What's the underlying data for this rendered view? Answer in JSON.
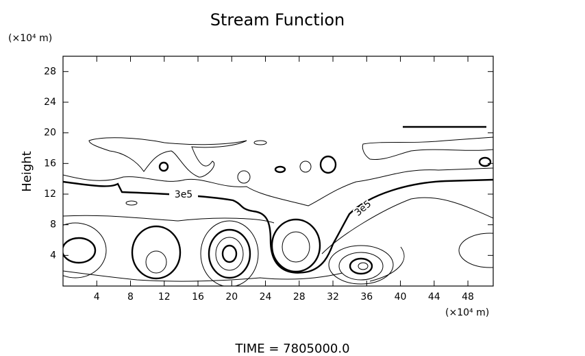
{
  "chart_data": {
    "type": "contour",
    "title": "Stream Function",
    "ylabel": "Height",
    "x_unit": "(×10⁴ m)",
    "y_unit": "(×10⁴ m)",
    "xlim": [
      0,
      51
    ],
    "ylim": [
      0,
      30
    ],
    "xticks": [
      4,
      8,
      12,
      16,
      20,
      24,
      28,
      32,
      36,
      40,
      44,
      48
    ],
    "yticks": [
      4,
      8,
      12,
      16,
      20,
      24,
      28
    ],
    "annotations": [
      "3e5",
      "3e5"
    ],
    "footer": "TIME  =  7805000.0",
    "color": "#000000"
  }
}
